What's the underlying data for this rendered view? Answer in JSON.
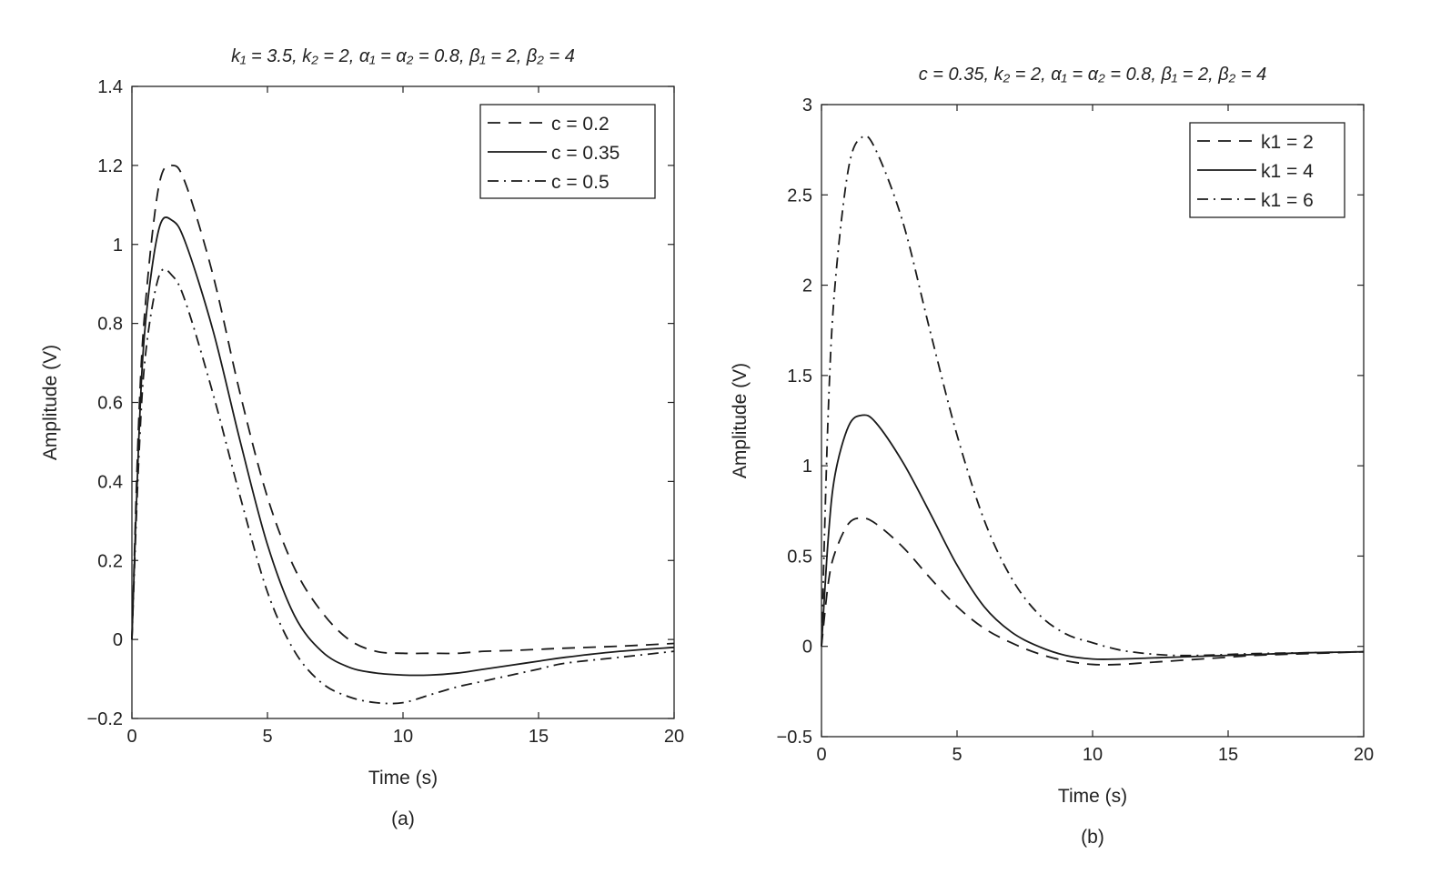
{
  "chart_data": [
    {
      "type": "line",
      "panel_label": "(a)",
      "title": "k₁ = 3.5, k₂ = 2, α₁ = α₂ = 0.8, β₁ = 2, β₂ = 4",
      "xlabel": "Time (s)",
      "ylabel": "Amplitude (V)",
      "xlim": [
        0,
        20
      ],
      "ylim": [
        -0.2,
        1.4
      ],
      "xticks": [
        "0",
        "5",
        "10",
        "15",
        "20"
      ],
      "yticks": [
        "−0.2",
        "0",
        "0.2",
        "0.4",
        "0.6",
        "0.8",
        "1",
        "1.2",
        "1.4"
      ],
      "grid": false,
      "legend_position": "top-right",
      "x": [
        0,
        0.25,
        0.5,
        1,
        1.5,
        2,
        3,
        4,
        5,
        6,
        7,
        8,
        9,
        10,
        11,
        12,
        13,
        14,
        15,
        16,
        18,
        20
      ],
      "series": [
        {
          "name": "c = 0.2",
          "style": "dashed",
          "values": [
            0,
            0.55,
            0.85,
            1.15,
            1.2,
            1.15,
            0.92,
            0.62,
            0.36,
            0.18,
            0.07,
            0.0,
            -0.03,
            -0.035,
            -0.035,
            -0.035,
            -0.03,
            -0.028,
            -0.025,
            -0.022,
            -0.017,
            -0.01
          ]
        },
        {
          "name": "c = 0.35",
          "style": "solid",
          "values": [
            0,
            0.5,
            0.8,
            1.04,
            1.06,
            1.0,
            0.78,
            0.5,
            0.24,
            0.06,
            -0.03,
            -0.07,
            -0.085,
            -0.09,
            -0.09,
            -0.085,
            -0.075,
            -0.065,
            -0.055,
            -0.045,
            -0.03,
            -0.02
          ]
        },
        {
          "name": "c = 0.5",
          "style": "dashdot",
          "values": [
            0,
            0.45,
            0.72,
            0.92,
            0.92,
            0.85,
            0.62,
            0.36,
            0.12,
            -0.03,
            -0.11,
            -0.145,
            -0.16,
            -0.16,
            -0.14,
            -0.12,
            -0.105,
            -0.09,
            -0.075,
            -0.06,
            -0.045,
            -0.03
          ]
        }
      ]
    },
    {
      "type": "line",
      "panel_label": "(b)",
      "title": "c = 0.35, k₂ = 2, α₁ = α₂ = 0.8, β₁ = 2, β₂ = 4",
      "xlabel": "Time (s)",
      "ylabel": "Amplitude (V)",
      "xlim": [
        0,
        20
      ],
      "ylim": [
        -0.5,
        3
      ],
      "xticks": [
        "0",
        "5",
        "10",
        "15",
        "20"
      ],
      "yticks": [
        "−0.5",
        "0",
        "0.5",
        "1",
        "1.5",
        "2",
        "2.5",
        "3"
      ],
      "grid": false,
      "legend_position": "top-right",
      "x": [
        0,
        0.25,
        0.5,
        1,
        1.5,
        2,
        3,
        4,
        5,
        6,
        7,
        8,
        9,
        10,
        11,
        12,
        13,
        14,
        15,
        16,
        18,
        20
      ],
      "series": [
        {
          "name": "k1 = 2",
          "style": "dashed",
          "values": [
            0,
            0.35,
            0.52,
            0.68,
            0.71,
            0.68,
            0.55,
            0.38,
            0.22,
            0.1,
            0.02,
            -0.04,
            -0.08,
            -0.1,
            -0.1,
            -0.09,
            -0.08,
            -0.07,
            -0.06,
            -0.05,
            -0.04,
            -0.03
          ]
        },
        {
          "name": "k1 = 4",
          "style": "solid",
          "values": [
            0,
            0.6,
            0.95,
            1.22,
            1.28,
            1.24,
            1.02,
            0.74,
            0.45,
            0.22,
            0.08,
            0.0,
            -0.05,
            -0.07,
            -0.07,
            -0.065,
            -0.06,
            -0.055,
            -0.05,
            -0.045,
            -0.035,
            -0.03
          ]
        },
        {
          "name": "k1 = 6",
          "style": "dashdot",
          "values": [
            0,
            1.3,
            2.0,
            2.65,
            2.82,
            2.75,
            2.35,
            1.75,
            1.17,
            0.7,
            0.38,
            0.18,
            0.07,
            0.02,
            -0.02,
            -0.04,
            -0.05,
            -0.05,
            -0.045,
            -0.04,
            -0.035,
            -0.03
          ]
        }
      ]
    }
  ]
}
